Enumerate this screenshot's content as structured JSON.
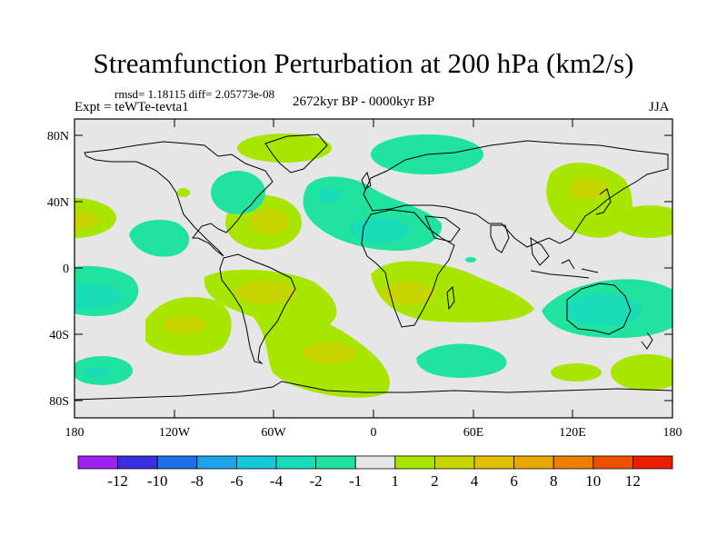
{
  "title": "Streamfunction Perturbation at 200 hPa (km2/s)",
  "stats": "rmsd= 1.18115 diff= 2.05773e-08",
  "experiment": "Expt = teWTe-tevta1",
  "period": "2672kyr BP - 0000kyr BP",
  "season": "JJA",
  "map": {
    "projection": "cylindrical-equidistant",
    "lon_range": [
      -180,
      180
    ],
    "lat_range": [
      -90,
      90
    ],
    "lat_ticks": [
      "80N",
      "40N",
      "0",
      "40S",
      "80S"
    ],
    "lon_ticks": [
      "180",
      "120W",
      "60W",
      "0",
      "60E",
      "120E",
      "180"
    ],
    "background_color": "#e6e6e6",
    "coastline_color": "#000000"
  },
  "colorbar": {
    "colors": [
      "#a020f0",
      "#3a2fe0",
      "#1f6fe8",
      "#1ea3e8",
      "#15c8dc",
      "#19dcb8",
      "#20e3a0",
      "#e6e6e6",
      "#a8e600",
      "#c8d600",
      "#e0c000",
      "#e8a800",
      "#ec8000",
      "#ec5000",
      "#e82000"
    ],
    "labels": [
      "-12",
      "-10",
      "-8",
      "-6",
      "-4",
      "-2",
      "-1",
      "1",
      "2",
      "4",
      "6",
      "8",
      "10",
      "12"
    ]
  }
}
